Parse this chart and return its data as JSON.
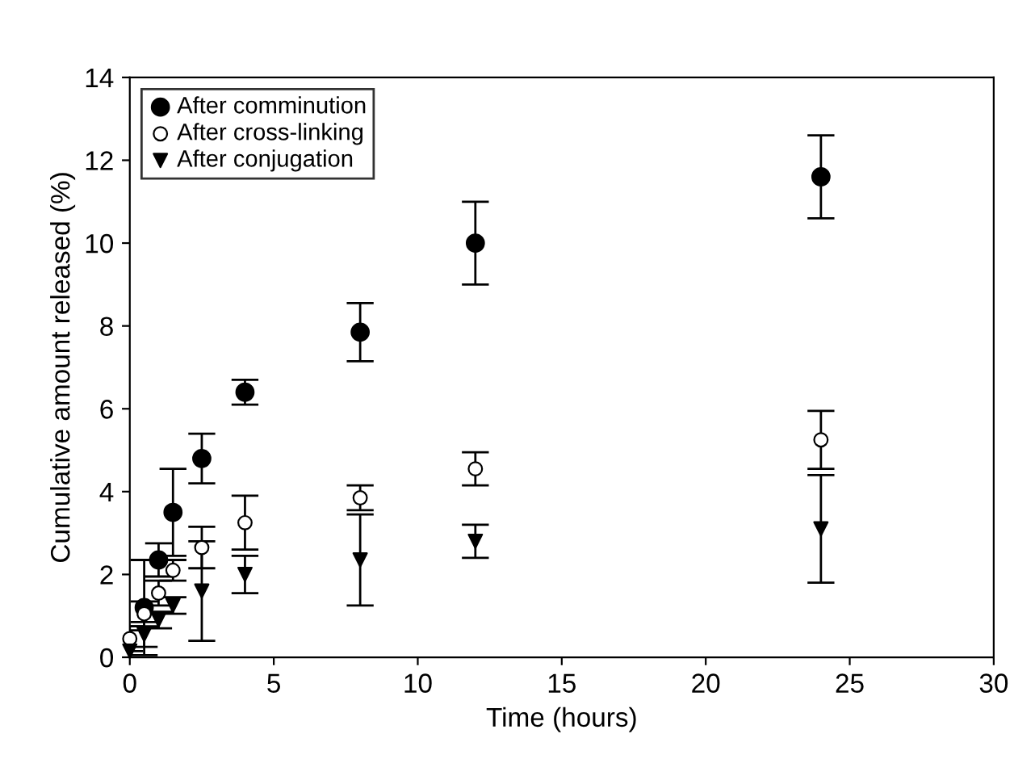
{
  "chart_data": {
    "type": "scatter",
    "xlabel": "Time (hours)",
    "ylabel": "Cumulative amount released (%)",
    "x": [
      0,
      0.5,
      1,
      1.5,
      2.5,
      4,
      8,
      12,
      24
    ],
    "xlim": [
      0,
      30
    ],
    "xticks": [
      0,
      5,
      10,
      15,
      20,
      25,
      30
    ],
    "ylim": [
      0,
      14
    ],
    "yticks": [
      0,
      2,
      4,
      6,
      8,
      10,
      12,
      14
    ],
    "grid": false,
    "legend": "top left",
    "series": [
      {
        "name": "After comminution",
        "color": "#000000",
        "marker": "circle",
        "values": [
          null,
          1.2,
          2.35,
          3.5,
          4.8,
          6.4,
          7.85,
          10.0,
          11.6
        ],
        "errors": [
          null,
          1.15,
          0.4,
          1.05,
          0.6,
          0.3,
          0.7,
          1.0,
          1.0
        ]
      },
      {
        "name": "After cross-linking",
        "color": "#ffffff",
        "marker": "circle",
        "values": [
          0.45,
          1.05,
          1.55,
          2.1,
          2.65,
          3.25,
          3.85,
          4.55,
          5.25
        ],
        "errors": [
          0.3,
          0.3,
          0.3,
          0.25,
          0.5,
          0.65,
          0.3,
          0.4,
          0.7
        ]
      },
      {
        "name": "After conjugation",
        "color": "#000000",
        "marker": "triangle",
        "values": [
          0.15,
          0.55,
          0.9,
          1.25,
          1.6,
          2.0,
          2.35,
          2.8,
          3.1
        ],
        "errors": [
          0.5,
          0.3,
          0.2,
          0.2,
          1.2,
          0.45,
          1.1,
          0.4,
          1.3
        ]
      }
    ]
  }
}
